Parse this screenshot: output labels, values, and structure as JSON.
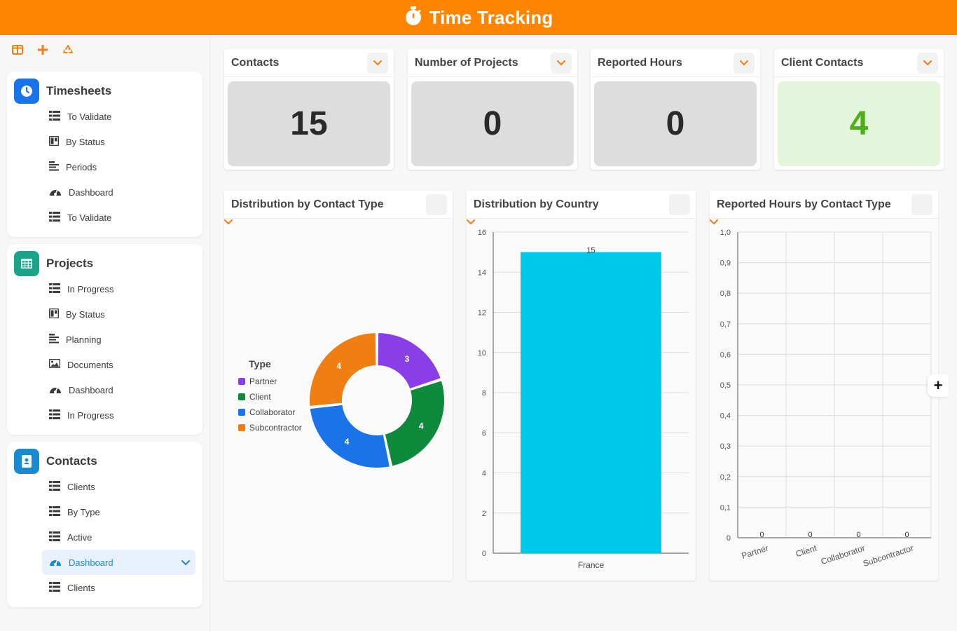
{
  "app": {
    "title": "Time Tracking"
  },
  "colors": {
    "accent": "#ff8500",
    "blue": "#1a73e8",
    "teal": "#18a58a",
    "green_text": "#4caf19"
  },
  "sidebar": {
    "toolbar": [
      {
        "icon": "columns-icon"
      },
      {
        "icon": "plus-icon"
      },
      {
        "icon": "recycle-icon"
      }
    ],
    "sections": [
      {
        "title": "Timesheets",
        "icon": "clock-icon",
        "items": [
          {
            "label": "To Validate",
            "icon": "list-icon"
          },
          {
            "label": "By Status",
            "icon": "kanban-icon"
          },
          {
            "label": "Periods",
            "icon": "gantt-icon"
          },
          {
            "label": "Dashboard",
            "icon": "gauge-icon"
          },
          {
            "label": "To Validate",
            "icon": "list-icon"
          }
        ]
      },
      {
        "title": "Projects",
        "icon": "grid-icon",
        "items": [
          {
            "label": "In Progress",
            "icon": "list-icon"
          },
          {
            "label": "By Status",
            "icon": "kanban-icon"
          },
          {
            "label": "Planning",
            "icon": "gantt-icon"
          },
          {
            "label": "Documents",
            "icon": "image-icon"
          },
          {
            "label": "Dashboard",
            "icon": "gauge-icon"
          },
          {
            "label": "In Progress",
            "icon": "list-icon"
          }
        ]
      },
      {
        "title": "Contacts",
        "icon": "address-book-icon",
        "items": [
          {
            "label": "Clients",
            "icon": "list-icon"
          },
          {
            "label": "By Type",
            "icon": "list-icon"
          },
          {
            "label": "Active",
            "icon": "list-icon"
          },
          {
            "label": "Dashboard",
            "icon": "gauge-icon",
            "active": true
          },
          {
            "label": "Clients",
            "icon": "list-icon"
          }
        ]
      }
    ]
  },
  "kpis": [
    {
      "title": "Contacts",
      "value": "15"
    },
    {
      "title": "Number of Projects",
      "value": "0"
    },
    {
      "title": "Reported Hours",
      "value": "0"
    },
    {
      "title": "Client Contacts",
      "value": "4",
      "highlight": "green"
    }
  ],
  "panels": [
    {
      "title": "Distribution by Contact Type"
    },
    {
      "title": "Distribution by Country"
    },
    {
      "title": "Reported Hours by Contact Type"
    }
  ],
  "chart_data": [
    {
      "type": "pie",
      "variant": "donut",
      "legend_title": "Type",
      "legend_position": "left",
      "slices": [
        {
          "label": "Partner",
          "value": 3,
          "color": "#8a3ee8"
        },
        {
          "label": "Client",
          "value": 4,
          "color": "#0d8a3c"
        },
        {
          "label": "Collaborator",
          "value": 4,
          "color": "#1a73e8"
        },
        {
          "label": "Subcontractor",
          "value": 4,
          "color": "#f07f13"
        }
      ]
    },
    {
      "type": "bar",
      "categories": [
        "France"
      ],
      "values": [
        15
      ],
      "ylim": [
        0,
        16
      ],
      "yticks": [
        "0",
        "2",
        "4",
        "6",
        "8",
        "10",
        "12",
        "14",
        "16"
      ],
      "color": "#00c8e8",
      "grid": true
    },
    {
      "type": "bar",
      "categories": [
        "Partner",
        "Client",
        "Collaborator",
        "Subcontractor"
      ],
      "values": [
        0,
        0,
        0,
        0
      ],
      "ylim": [
        0,
        1
      ],
      "yticks": [
        "0",
        "0,1",
        "0,2",
        "0,3",
        "0,4",
        "0,5",
        "0,6",
        "0,7",
        "0,8",
        "0,9",
        "1,0"
      ],
      "grid": true
    }
  ]
}
